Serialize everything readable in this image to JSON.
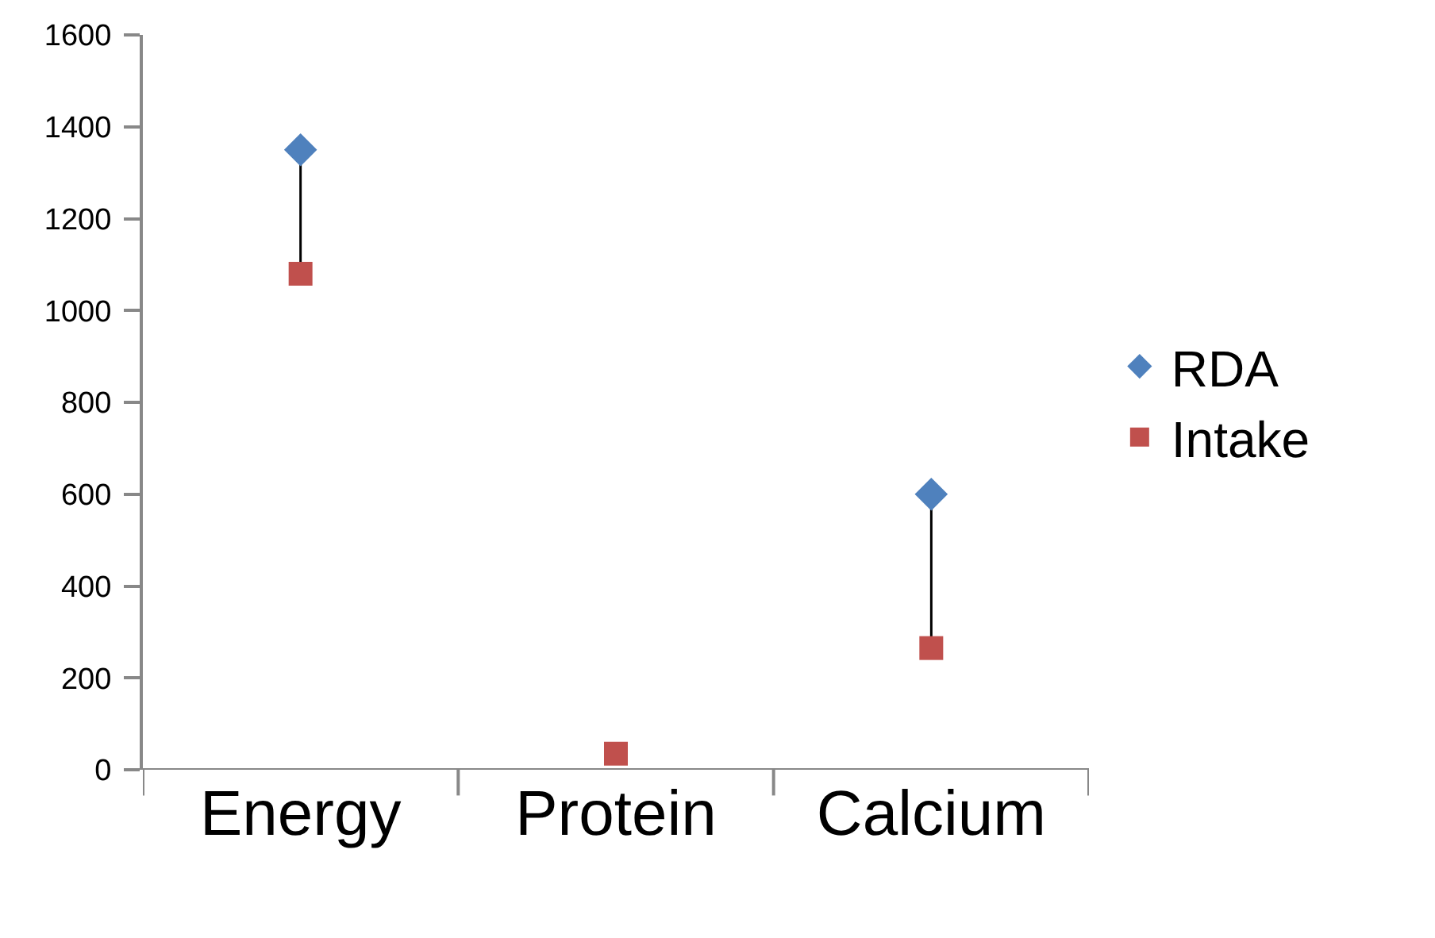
{
  "chart_data": {
    "type": "scatter",
    "categories": [
      "Energy",
      "Protein",
      "Calcium"
    ],
    "series": [
      {
        "name": "RDA",
        "color": "#4f81bd",
        "marker": "diamond",
        "values": [
          1350,
          null,
          600
        ]
      },
      {
        "name": "Intake",
        "color": "#c0504d",
        "marker": "square",
        "values": [
          1080,
          35,
          265
        ]
      }
    ],
    "ylim": [
      0,
      1600
    ],
    "yticks": [
      0,
      200,
      400,
      600,
      800,
      1000,
      1200,
      1400,
      1600
    ],
    "grid": false,
    "legend": "right"
  }
}
